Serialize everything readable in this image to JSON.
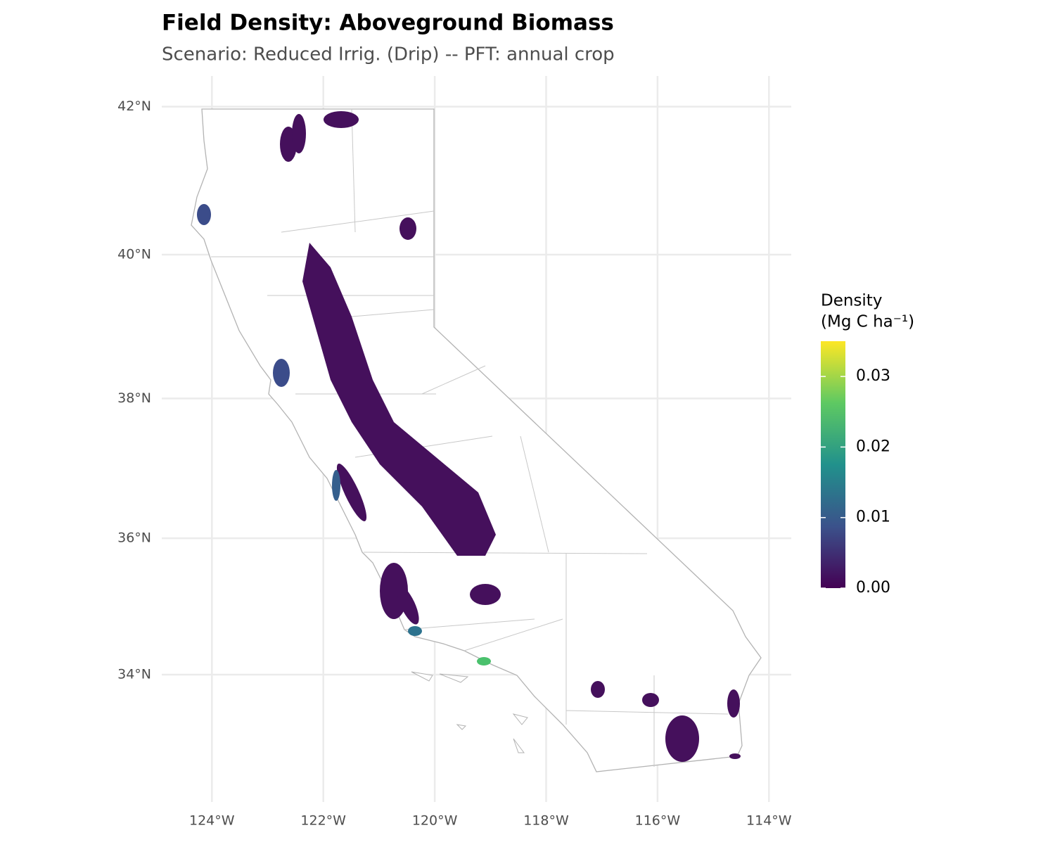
{
  "map": {
    "title": "Field Density: Aboveground Biomass",
    "subtitle": "Scenario: Reduced Irrig. (Drip)  --  PFT: annual crop",
    "xlim": [
      -124.9,
      -113.6
    ],
    "ylim": [
      32.6,
      42.5
    ],
    "xticks": [
      {
        "value": -124,
        "label": "124°W"
      },
      {
        "value": -122,
        "label": "122°W"
      },
      {
        "value": -120,
        "label": "120°W"
      },
      {
        "value": -118,
        "label": "118°W"
      },
      {
        "value": -116,
        "label": "116°W"
      },
      {
        "value": -114,
        "label": "114°W"
      }
    ],
    "yticks": [
      {
        "value": 34,
        "label": "34°N"
      },
      {
        "value": 36,
        "label": "36°N"
      },
      {
        "value": 38,
        "label": "38°N"
      },
      {
        "value": 40,
        "label": "40°N"
      },
      {
        "value": 42,
        "label": "42°N"
      }
    ],
    "legend": {
      "title": [
        "Density",
        "(Mg C ha⁻¹)"
      ],
      "lim": [
        0,
        0.035
      ],
      "ticks": [
        {
          "value": 0,
          "label": "0.00"
        },
        0.01,
        0.02,
        0.03
      ],
      "colors": [
        "#440154",
        "#3b528b",
        "#21918c",
        "#5ec962",
        "#fde725"
      ]
    }
  }
}
